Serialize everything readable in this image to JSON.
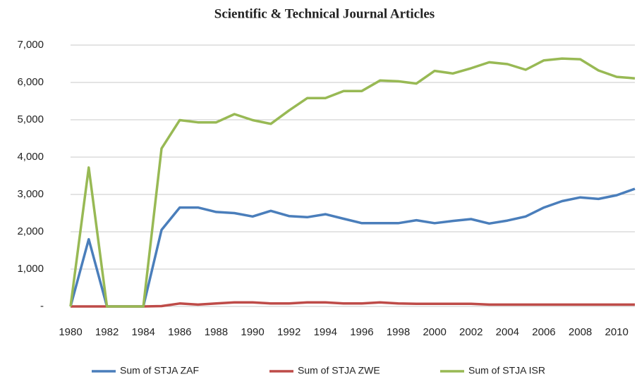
{
  "chart_data": {
    "type": "line",
    "title": "Scientific & Technical Journal Articles",
    "x": [
      1980,
      1981,
      1982,
      1983,
      1984,
      1985,
      1986,
      1987,
      1988,
      1989,
      1990,
      1991,
      1992,
      1993,
      1994,
      1995,
      1996,
      1997,
      1998,
      1999,
      2000,
      2001,
      2002,
      2003,
      2004,
      2005,
      2006,
      2007,
      2008,
      2009,
      2010,
      2011
    ],
    "series": [
      {
        "name": "Sum of STJA ZAF",
        "color": "#4a7ebb",
        "values": [
          0,
          1800,
          0,
          0,
          0,
          2050,
          2650,
          2650,
          2530,
          2500,
          2410,
          2560,
          2420,
          2390,
          2470,
          2350,
          2230,
          2230,
          2230,
          2310,
          2230,
          2290,
          2340,
          2220,
          2300,
          2410,
          2650,
          2820,
          2920,
          2880,
          2980,
          3150
        ]
      },
      {
        "name": "Sum of STJA ZWE",
        "color": "#be4b48",
        "values": [
          0,
          0,
          0,
          0,
          0,
          10,
          80,
          50,
          80,
          110,
          110,
          80,
          80,
          110,
          110,
          80,
          80,
          110,
          80,
          70,
          70,
          70,
          70,
          50,
          50,
          50,
          50,
          50,
          50,
          50,
          50,
          50
        ]
      },
      {
        "name": "Sum of STJA ISR",
        "color": "#98b954",
        "values": [
          0,
          3720,
          0,
          0,
          0,
          4230,
          4990,
          4930,
          4930,
          5150,
          4990,
          4890,
          5250,
          5580,
          5580,
          5770,
          5770,
          6050,
          6030,
          5970,
          6310,
          6240,
          6380,
          6540,
          6490,
          6340,
          6590,
          6640,
          6620,
          6320,
          6150,
          6110
        ]
      }
    ],
    "xlim": [
      1980,
      2011
    ],
    "xticks": [
      1980,
      1982,
      1984,
      1986,
      1988,
      1990,
      1992,
      1994,
      1996,
      1998,
      2000,
      2002,
      2004,
      2006,
      2008,
      2010
    ],
    "ylim": [
      0,
      7000
    ],
    "yticks": [
      {
        "value": 0,
        "label": "-"
      },
      {
        "value": 1000,
        "label": "1,000"
      },
      {
        "value": 2000,
        "label": "2,000"
      },
      {
        "value": 3000,
        "label": "3,000"
      },
      {
        "value": 4000,
        "label": "4,000"
      },
      {
        "value": 5000,
        "label": "5,000"
      },
      {
        "value": 6000,
        "label": "6,000"
      },
      {
        "value": 7000,
        "label": "7,000"
      }
    ],
    "grid": true
  }
}
